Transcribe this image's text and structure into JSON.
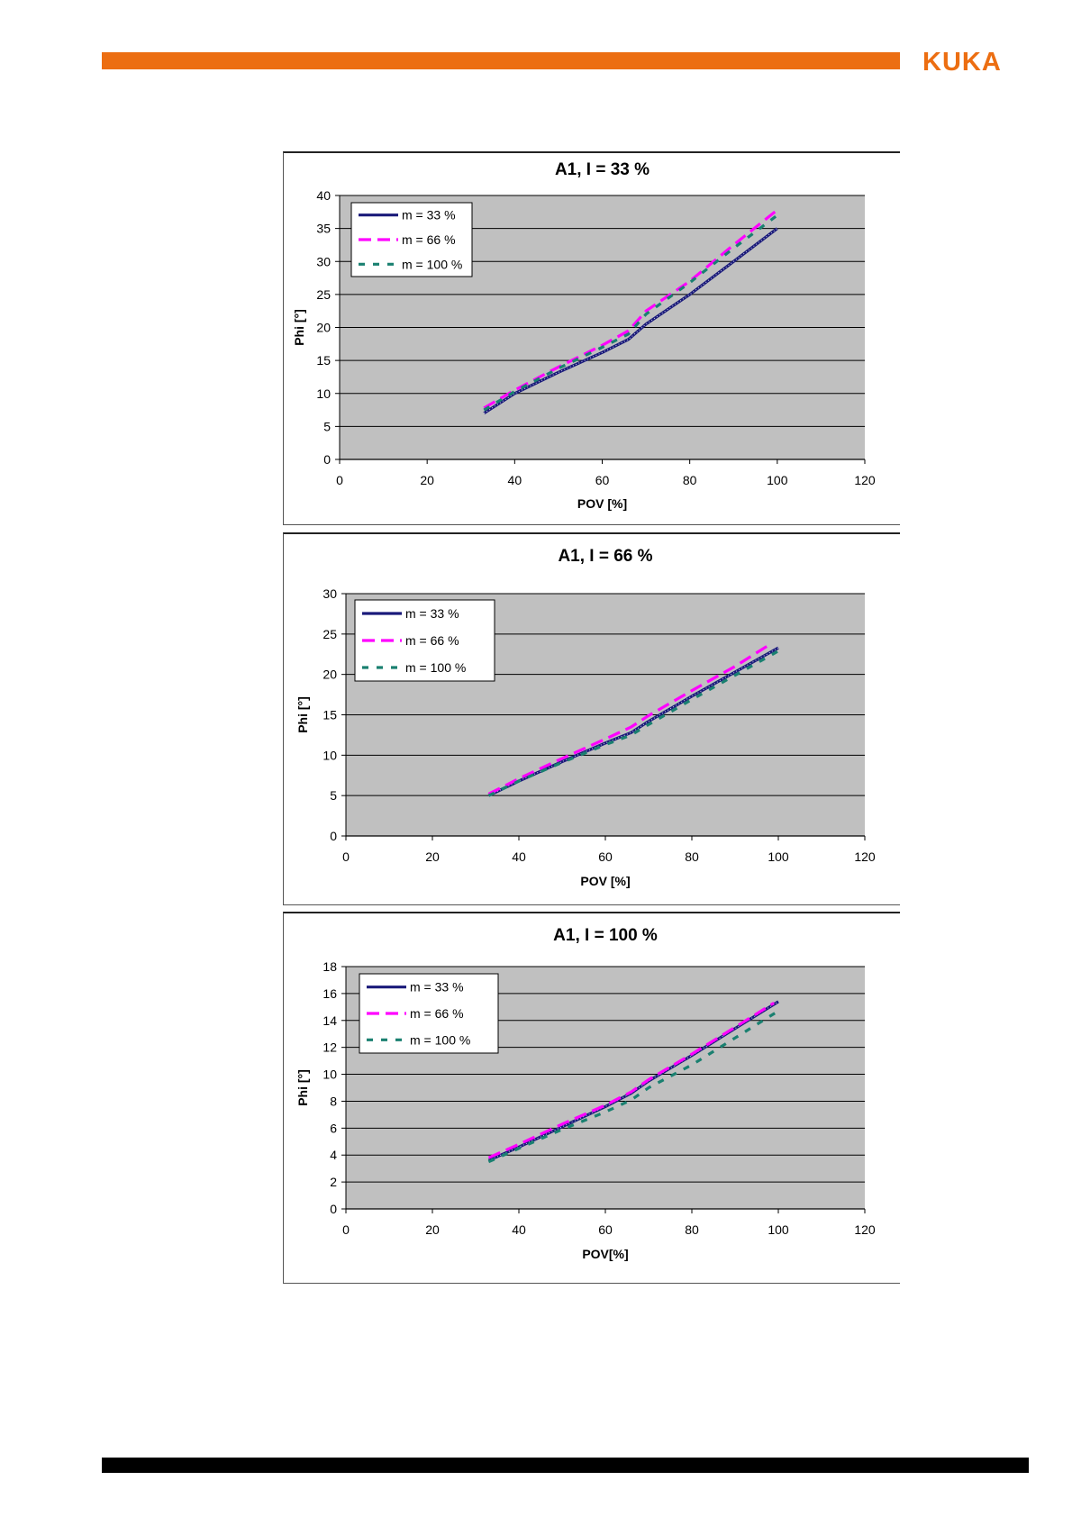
{
  "header": {
    "logo_text": "KUKA",
    "accent_color": "#ec6e12"
  },
  "chart_data": [
    {
      "type": "line",
      "title": "A1, I = 33 %",
      "xlabel": "POV [%]",
      "ylabel": "Phi [°]",
      "xlim": [
        0,
        120
      ],
      "ylim": [
        0,
        40
      ],
      "xticks": [
        0,
        20,
        40,
        60,
        80,
        100,
        120
      ],
      "yticks": [
        0,
        5,
        10,
        15,
        20,
        25,
        30,
        35,
        40
      ],
      "grid": true,
      "legend": "top-left",
      "series": [
        {
          "name": "m = 33 %",
          "color": "#1a1a7a",
          "style": "marker-line",
          "x": [
            33,
            40,
            50,
            60,
            66,
            70,
            80,
            90,
            100
          ],
          "y": [
            7,
            10,
            13.2,
            16.2,
            18.2,
            20.5,
            25,
            30,
            35
          ]
        },
        {
          "name": "m = 66 %",
          "color": "#ff00ff",
          "style": "long-dash",
          "x": [
            33,
            40,
            50,
            60,
            66,
            70,
            80,
            90,
            100
          ],
          "y": [
            7.8,
            10.5,
            14,
            17.3,
            19.5,
            22.5,
            27,
            32.5,
            37.8
          ]
        },
        {
          "name": "m = 100 %",
          "color": "#1a8070",
          "style": "short-dash",
          "x": [
            33,
            40,
            50,
            60,
            66,
            70,
            80,
            90,
            100
          ],
          "y": [
            7.5,
            10.3,
            13.8,
            17,
            19,
            22,
            26.8,
            32,
            37
          ]
        }
      ]
    },
    {
      "type": "line",
      "title": "A1,  I = 66 %",
      "xlabel": "POV [%]",
      "ylabel": "Phi [°]",
      "xlim": [
        0,
        120
      ],
      "ylim": [
        0,
        30
      ],
      "xticks": [
        0,
        20,
        40,
        60,
        80,
        100,
        120
      ],
      "yticks": [
        0,
        5,
        10,
        15,
        20,
        25,
        30
      ],
      "grid": true,
      "legend": "top-left",
      "series": [
        {
          "name": "m = 33 %",
          "color": "#1a1a7a",
          "style": "marker-line",
          "x": [
            33,
            40,
            50,
            60,
            66,
            70,
            80,
            90,
            100
          ],
          "y": [
            5,
            6.8,
            9.2,
            11.5,
            12.8,
            14.2,
            17.3,
            20.3,
            23.3
          ]
        },
        {
          "name": "m = 66 %",
          "color": "#ff00ff",
          "style": "long-dash",
          "x": [
            33,
            40,
            50,
            60,
            66,
            70,
            80,
            90,
            98
          ],
          "y": [
            5.2,
            7.1,
            9.6,
            12,
            13.5,
            14.9,
            18,
            21,
            23.7
          ]
        },
        {
          "name": "m = 100 %",
          "color": "#1a8070",
          "style": "short-dash",
          "x": [
            33,
            40,
            50,
            60,
            66,
            70,
            80,
            90,
            100
          ],
          "y": [
            5,
            6.8,
            9.1,
            11.3,
            12.5,
            13.8,
            16.9,
            19.9,
            22.9
          ]
        }
      ]
    },
    {
      "type": "line",
      "title": "A1,  I = 100 %",
      "xlabel": "POV[%]",
      "ylabel": "Phi [°]",
      "xlim": [
        0,
        120
      ],
      "ylim": [
        0,
        18
      ],
      "xticks": [
        0,
        20,
        40,
        60,
        80,
        100,
        120
      ],
      "yticks": [
        0,
        2,
        4,
        6,
        8,
        10,
        12,
        14,
        16,
        18
      ],
      "grid": true,
      "legend": "top-left",
      "series": [
        {
          "name": "m = 33 %",
          "color": "#1a1a7a",
          "style": "marker-line",
          "x": [
            33,
            40,
            50,
            60,
            66,
            70,
            80,
            90,
            100
          ],
          "y": [
            3.6,
            4.6,
            6.1,
            7.6,
            8.6,
            9.5,
            11.4,
            13.4,
            15.4
          ]
        },
        {
          "name": "m = 66 %",
          "color": "#ff00ff",
          "style": "long-dash",
          "x": [
            33,
            40,
            50,
            60,
            66,
            70,
            80,
            90,
            99
          ],
          "y": [
            3.8,
            4.8,
            6.3,
            7.7,
            8.7,
            9.6,
            11.5,
            13.5,
            15.3
          ]
        },
        {
          "name": "m = 100 %",
          "color": "#1a8070",
          "style": "short-dash",
          "x": [
            33,
            40,
            50,
            60,
            66,
            70,
            80,
            90,
            100
          ],
          "y": [
            3.5,
            4.5,
            5.9,
            7.2,
            8.1,
            9,
            10.7,
            12.7,
            14.7
          ]
        }
      ]
    }
  ]
}
